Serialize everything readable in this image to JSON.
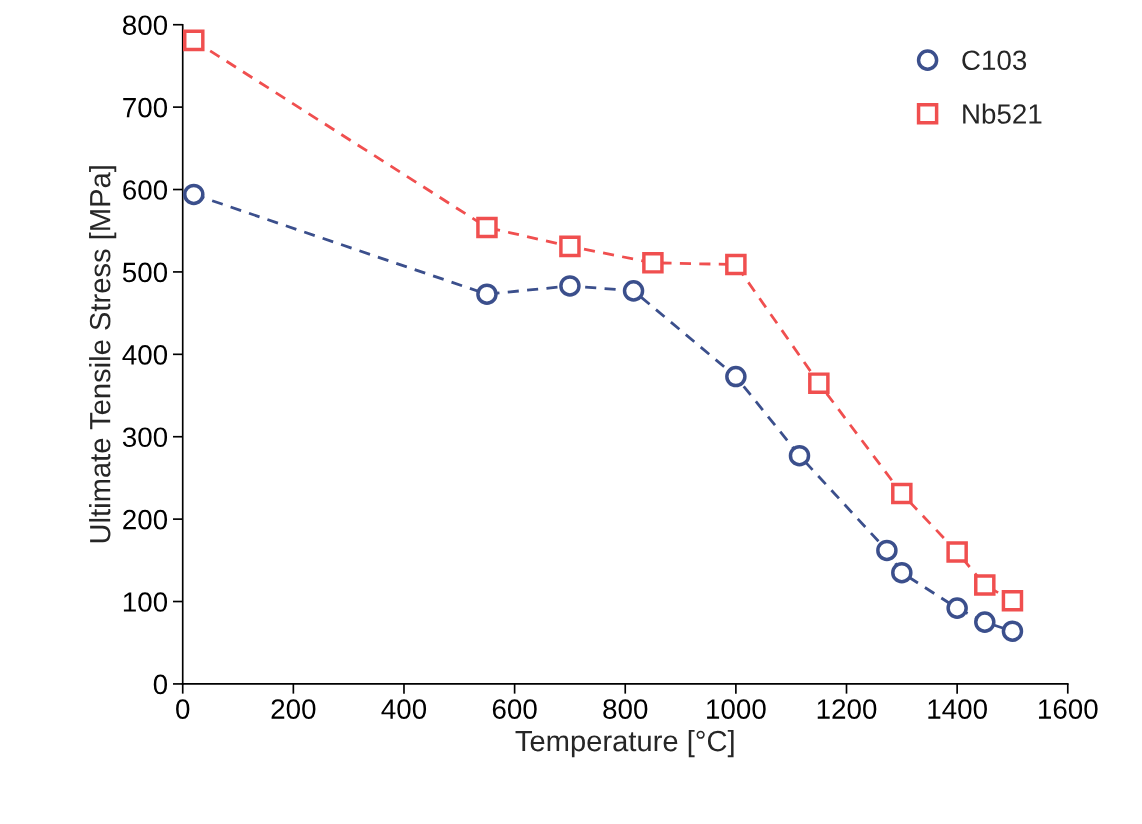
{
  "chart_data": {
    "type": "line",
    "xlabel": "Temperature [°C]",
    "ylabel": "Ultimate Tensile Stress [MPa]",
    "xlim": [
      0,
      1600
    ],
    "xticks": [
      0,
      200,
      400,
      600,
      800,
      1000,
      1200,
      1400,
      1600
    ],
    "ylim": [
      0,
      800
    ],
    "yticks": [
      0,
      100,
      200,
      300,
      400,
      500,
      600,
      700,
      800
    ],
    "grid": false,
    "legend": "top right",
    "line_style": "dashed",
    "series": [
      {
        "name": "C103",
        "color": "#3b4f8c",
        "marker": "circle",
        "x": [
          20,
          550,
          700,
          815,
          1000,
          1115,
          1273,
          1300,
          1400,
          1450,
          1500
        ],
        "values": [
          594,
          473,
          483,
          477,
          373,
          277,
          162,
          135,
          92,
          75,
          64
        ]
      },
      {
        "name": "Nb521",
        "color": "#f04f4f",
        "marker": "square",
        "x": [
          20,
          550,
          700,
          850,
          1000,
          1150,
          1300,
          1400,
          1450,
          1500
        ],
        "values": [
          781,
          554,
          531,
          511,
          509,
          365,
          231,
          160,
          120,
          101
        ]
      }
    ]
  }
}
